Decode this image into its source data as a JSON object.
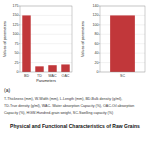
{
  "title": "Physical and Functional Characteristics of Raw Grains",
  "subtitle": "(a)",
  "annotations": [
    "T-Thickness (mm), W-Width (mm), L-Length (mm), BD-Bulk density (g/ml),",
    "TD-True density (g/ml), WAC- Water absorption Capacity (%), OAC-Oil absorption",
    "Capacity (%), HGW-Hundred-grain weight, SC-Swelling capacity (%)"
  ],
  "chart_data": [
    {
      "type": "bar",
      "categories": [
        "BD",
        "TD",
        "WAC",
        "OAC"
      ],
      "values": [
        150,
        15,
        18,
        20
      ],
      "color": "#c1373a",
      "x_label": "Parameters",
      "y_label": "Values of parameters",
      "ylim": [
        0,
        175
      ],
      "yticks": [
        0,
        25,
        50,
        75,
        100,
        125,
        150,
        175
      ],
      "grid": true
    },
    {
      "type": "bar",
      "categories": [
        "SC"
      ],
      "values": [
        120
      ],
      "color": "#c1373a",
      "y_label": "Values of parameters",
      "ylim": [
        0,
        140
      ],
      "yticks": [
        0,
        20,
        40,
        60,
        80,
        100,
        120,
        140
      ],
      "grid": true
    }
  ]
}
